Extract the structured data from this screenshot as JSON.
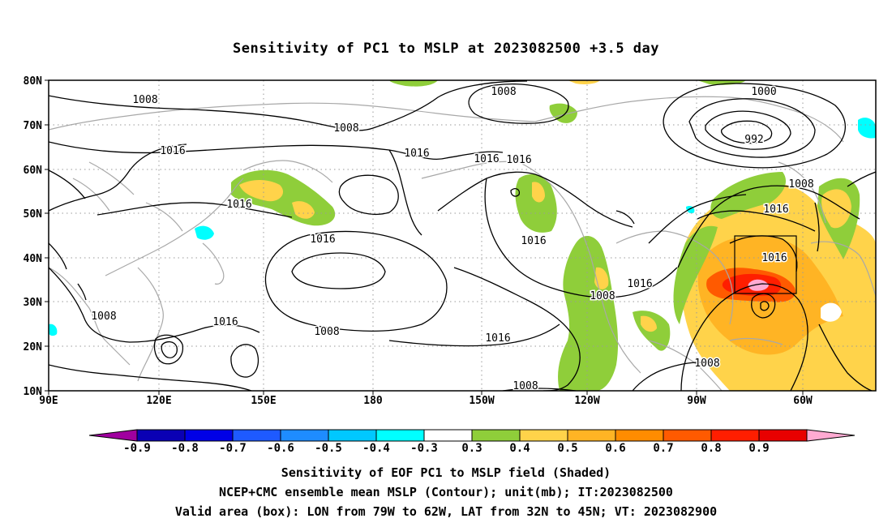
{
  "title": "Sensitivity of PC1 to MSLP at 2023082500 +3.5 day",
  "lat_labels": [
    "80N",
    "70N",
    "60N",
    "50N",
    "40N",
    "30N",
    "20N",
    "10N"
  ],
  "lon_labels": [
    "90E",
    "120E",
    "150E",
    "180",
    "150W",
    "120W",
    "90W",
    "60W"
  ],
  "contour_labels": [
    "1008",
    "1000",
    "1008",
    "1016",
    "992",
    "1016",
    "1016",
    "1016",
    "1008",
    "1016",
    "1016",
    "1016",
    "1016",
    "1016",
    "1016",
    "1008",
    "1008",
    "1008",
    "1016",
    "1016",
    "1008",
    "1008",
    "1008"
  ],
  "colorbar": {
    "colors": [
      "#a0009f",
      "#0a00b4",
      "#0000e6",
      "#1e5aff",
      "#1e8cff",
      "#00c8ff",
      "#00ffff",
      "#ffffff",
      "#8fce3a",
      "#ffd34a",
      "#ffb424",
      "#ff8c00",
      "#ff5a00",
      "#ff1e00",
      "#e80000",
      "#ffaad2"
    ],
    "labels": [
      "-0.9",
      "-0.8",
      "-0.7",
      "-0.6",
      "-0.5",
      "-0.4",
      "-0.3",
      "0.3",
      "0.4",
      "0.5",
      "0.6",
      "0.7",
      "0.8",
      "0.9"
    ]
  },
  "box": {
    "lon_from": "79W",
    "lon_to": "62W",
    "lat_from": "32N",
    "lat_to": "45N"
  },
  "captions": [
    "Sensitivity of EOF PC1 to MSLP field (Shaded)",
    "NCEP+CMC ensemble mean MSLP (Contour); unit(mb); IT:2023082500",
    "Valid area (box): LON from 79W to 62W, LAT from 32N to 45N; VT: 2023082900"
  ]
}
